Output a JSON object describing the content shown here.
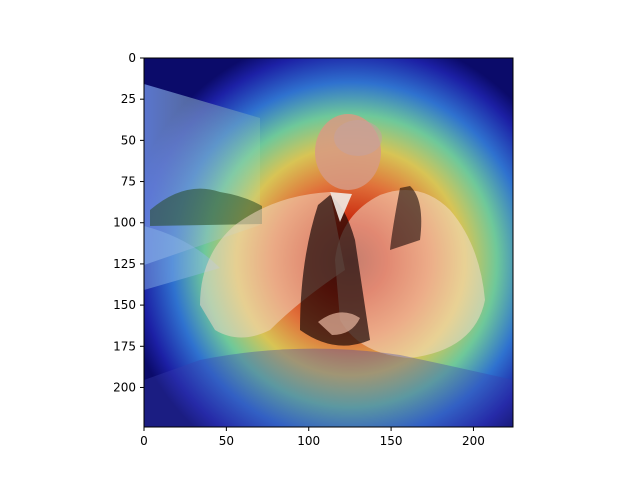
{
  "chart_data": {
    "type": "heatmap",
    "title": "",
    "xlabel": "",
    "ylabel": "",
    "image_shape": [
      224,
      224
    ],
    "xlim": [
      0,
      224
    ],
    "ylim": [
      224,
      0
    ],
    "x_ticks": [
      0,
      50,
      100,
      150,
      200
    ],
    "y_ticks": [
      0,
      25,
      50,
      75,
      100,
      125,
      150,
      175,
      200
    ],
    "x_tick_labels": [
      "0",
      "50",
      "100",
      "150",
      "200"
    ],
    "y_tick_labels": [
      "0",
      "25",
      "50",
      "75",
      "100",
      "125",
      "150",
      "175",
      "200"
    ],
    "colormap": "jet",
    "overlay": "saliency heatmap over a painted portrait of a seated clergyman in white lawn sleeves and black chimere",
    "hotspot_center": [
      118,
      150
    ],
    "grid": false,
    "legend": "none",
    "colors": {
      "jet_dark_blue": "#00007f",
      "jet_blue": "#0000ff",
      "jet_cyan": "#00ffff",
      "jet_yellow": "#ffff00",
      "jet_red": "#ff0000",
      "jet_dark_red": "#7f0000"
    }
  }
}
